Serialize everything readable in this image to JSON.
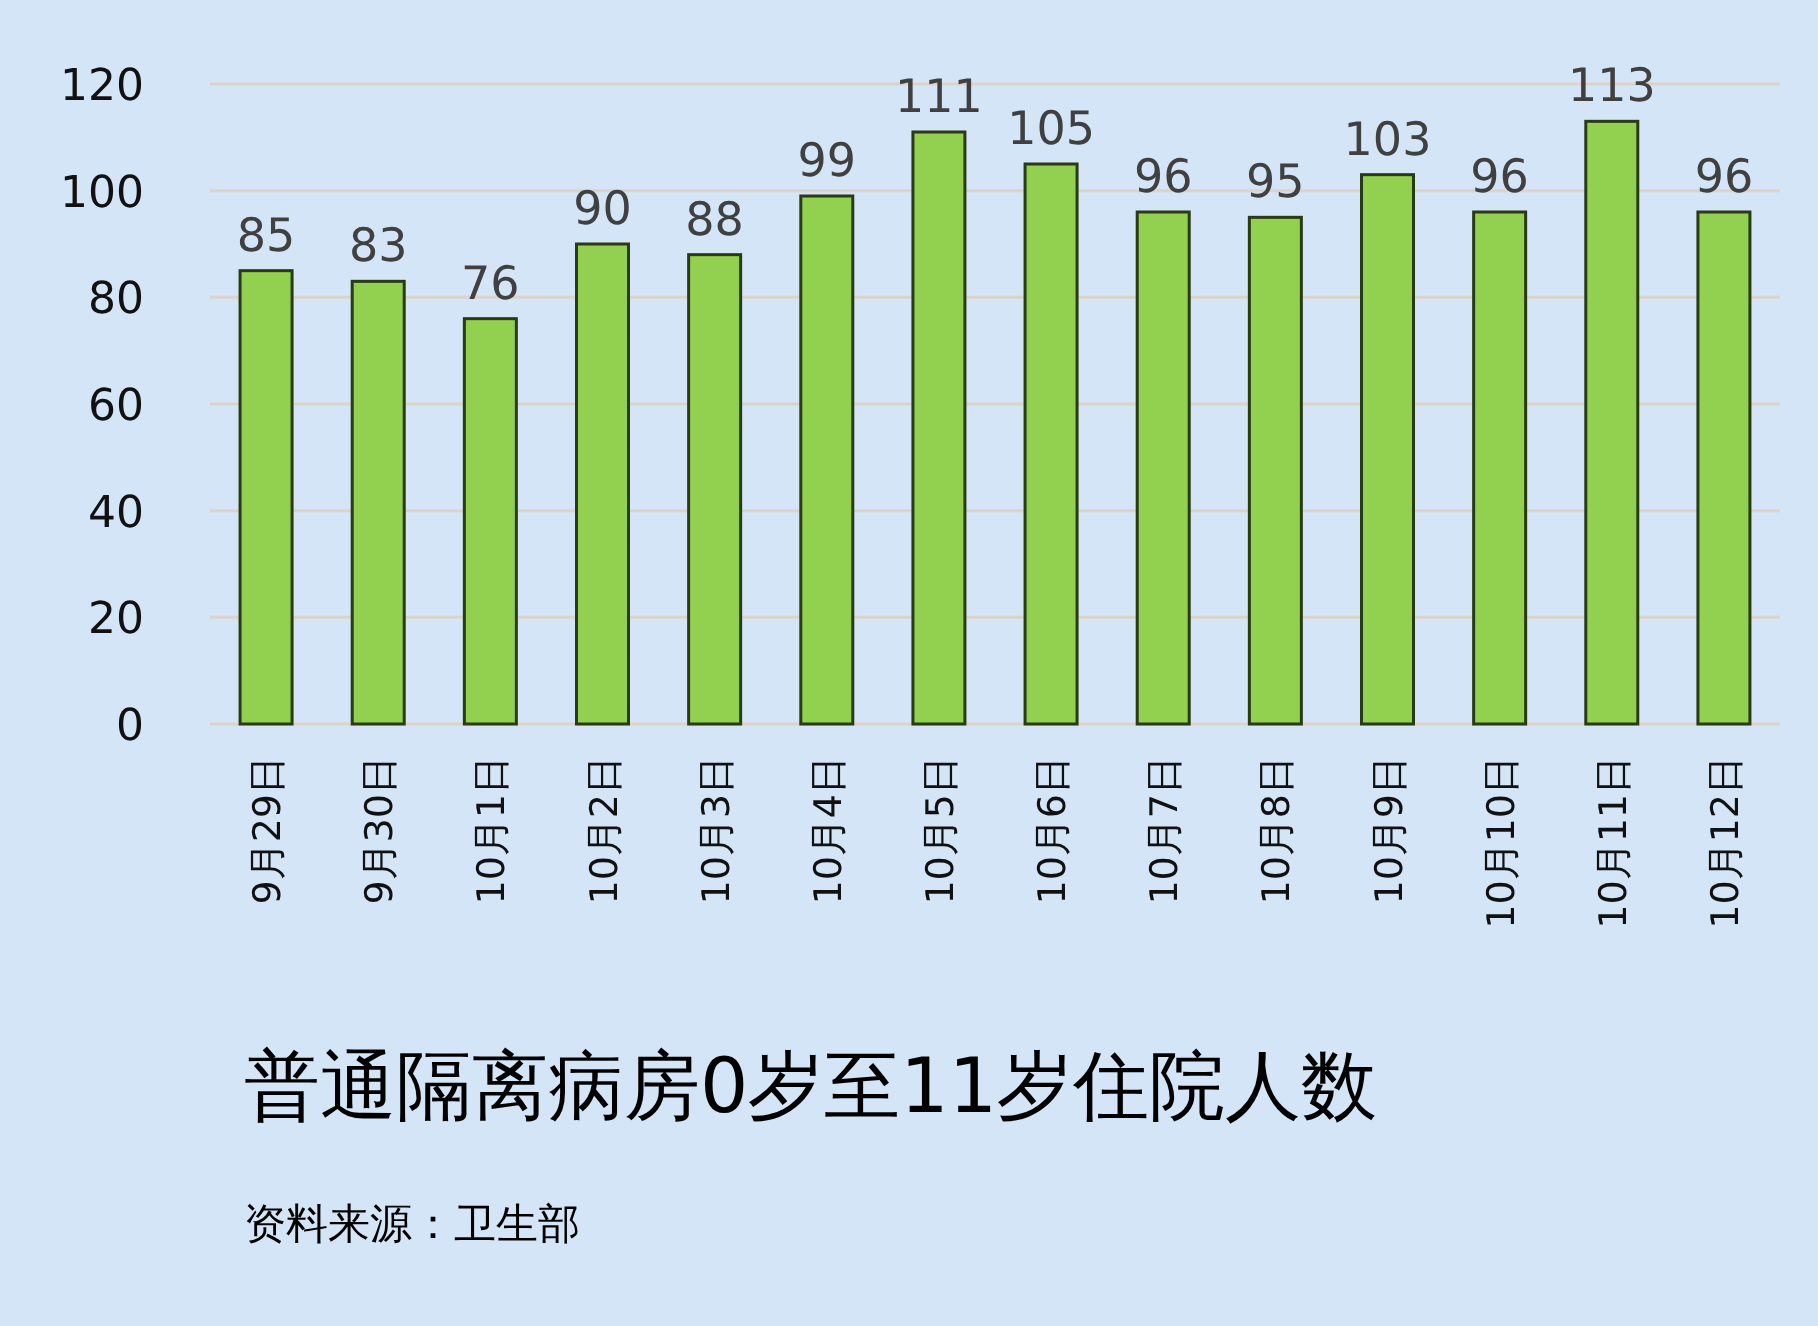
{
  "chart_data": {
    "type": "bar",
    "title": "普通隔离病房0岁至11岁住院人数",
    "annotations": [
      "资料来源：卫生部"
    ],
    "categories": [
      "9月29日",
      "9月30日",
      "10月1日",
      "10月2日",
      "10月3日",
      "10月4日",
      "10月5日",
      "10月6日",
      "10月7日",
      "10月8日",
      "10月9日",
      "10月10日",
      "10月11日",
      "10月12日"
    ],
    "values": [
      85,
      83,
      76,
      90,
      88,
      99,
      111,
      105,
      96,
      95,
      103,
      96,
      113,
      96
    ],
    "color": "#92d050",
    "ylim": [
      0,
      120
    ],
    "yticks": [
      0,
      20,
      40,
      60,
      80,
      100,
      120
    ],
    "grid": "y",
    "data_labels": true
  }
}
